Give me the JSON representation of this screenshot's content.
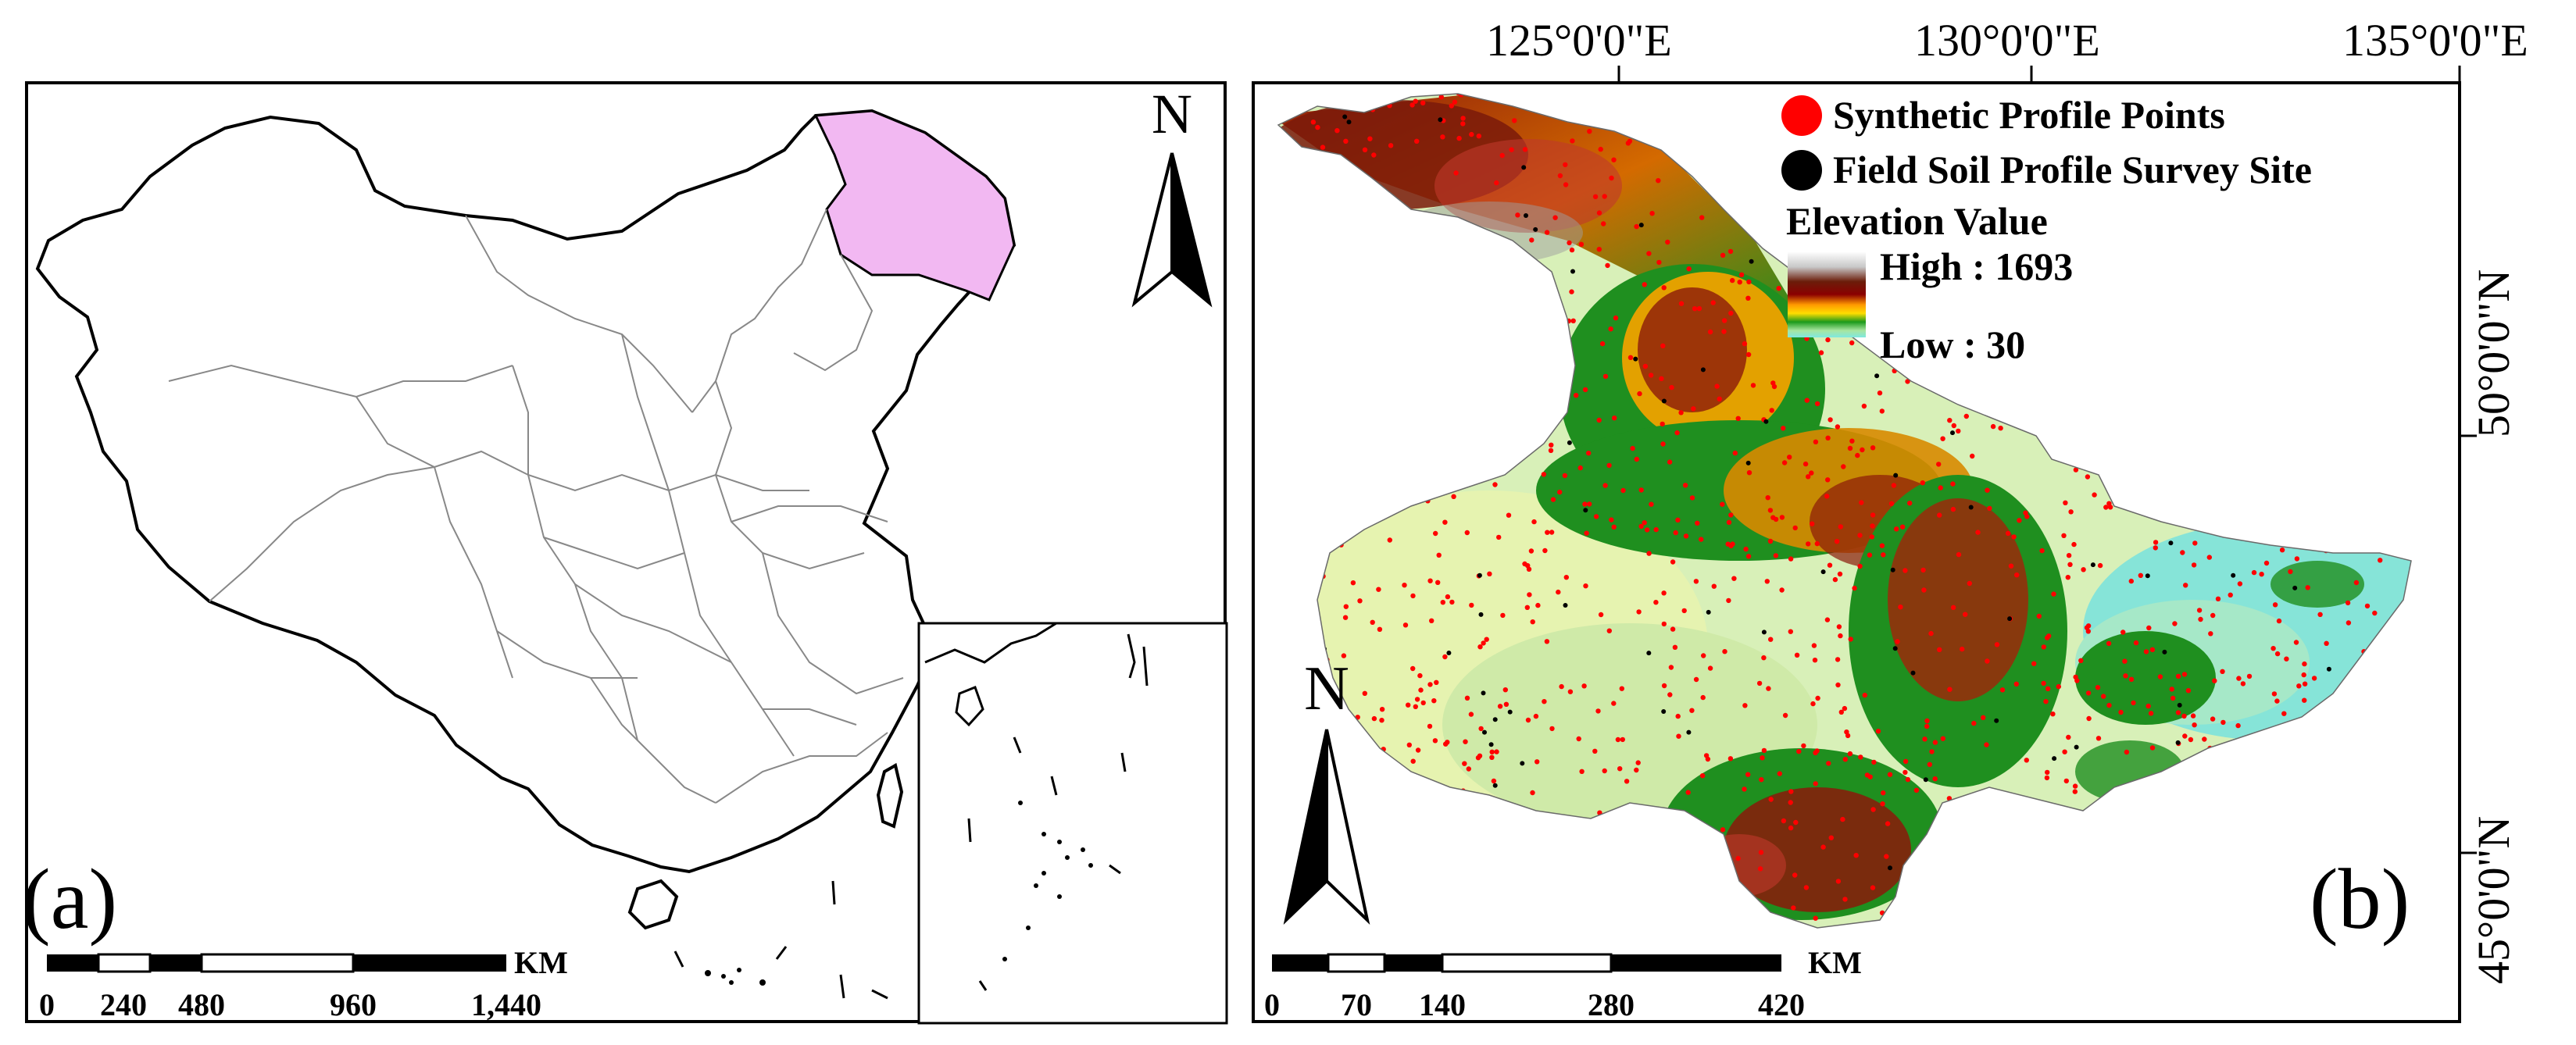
{
  "panel_a": {
    "label": "(a)",
    "north": "N",
    "scale_unit": "KM",
    "scale_ticks": [
      "0",
      "240",
      "480",
      "960",
      "1,440"
    ]
  },
  "panel_b": {
    "label": "(b)",
    "north": "N",
    "scale_unit": "KM",
    "scale_ticks": [
      "0",
      "70",
      "140",
      "280",
      "420"
    ],
    "lon_labels": [
      "125°0'0\"E",
      "130°0'0\"E",
      "135°0'0\"E"
    ],
    "lat_labels": [
      "50°0'0\"N",
      "45°0'0\"N"
    ],
    "legend": {
      "synthetic": "Synthetic Profile Points",
      "field": "Field Soil Profile Survey Site",
      "elevation_title": "Elevation Value",
      "high": "High : 1693",
      "low": "Low :  30"
    }
  },
  "colors": {
    "highlight_region": "#f2b8f2",
    "synthetic_point": "#ff0000",
    "field_point": "#000000"
  }
}
